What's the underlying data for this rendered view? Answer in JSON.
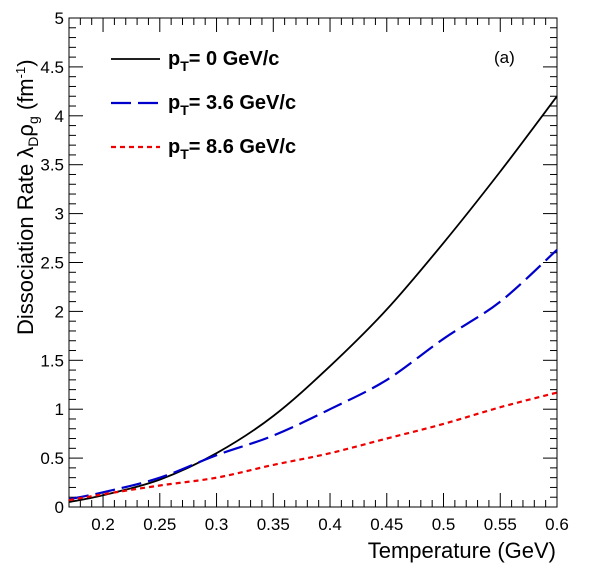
{
  "chart_data": {
    "type": "line",
    "panel_label": "(a)",
    "xlabel": "Temperature (GeV)",
    "ylabel": {
      "prefix": "Dissociation Rate ",
      "symbol1": "λ",
      "sub1": "D",
      "symbol2": "ρ",
      "sub2": "g",
      "unit_open": " (fm",
      "unit_sup": "-1",
      "unit_close": ")"
    },
    "xlim": [
      0.17,
      0.6
    ],
    "ylim": [
      0,
      5
    ],
    "xticks": [
      0.2,
      0.25,
      0.3,
      0.35,
      0.4,
      0.45,
      0.5,
      0.55,
      0.6
    ],
    "xtick_labels": [
      "0.2",
      "0.25",
      "0.3",
      "0.35",
      "0.4",
      "0.45",
      "0.5",
      "0.55",
      "0.6"
    ],
    "yticks": [
      0,
      0.5,
      1,
      1.5,
      2,
      2.5,
      3,
      3.5,
      4,
      4.5,
      5
    ],
    "ytick_labels": [
      "0",
      "0.5",
      "1",
      "1.5",
      "2",
      "2.5",
      "3",
      "3.5",
      "4",
      "4.5",
      "5"
    ],
    "grid": false,
    "legend_position": "top-left",
    "series": [
      {
        "name": "= 0 GeV/c",
        "label_main": "p",
        "label_sub": "T",
        "label_rest": "= 0 GeV/c",
        "color": "#000000",
        "style": "solid",
        "x": [
          0.17,
          0.2,
          0.25,
          0.3,
          0.35,
          0.4,
          0.45,
          0.5,
          0.55,
          0.6
        ],
        "y": [
          0.05,
          0.12,
          0.28,
          0.55,
          0.93,
          1.44,
          2.02,
          2.7,
          3.43,
          4.2
        ]
      },
      {
        "name": "= 3.6 GeV/c",
        "label_main": "p",
        "label_sub": "T",
        "label_rest": "= 3.6 GeV/c",
        "color": "#0000cc",
        "style": "dashed",
        "x": [
          0.17,
          0.2,
          0.25,
          0.3,
          0.35,
          0.4,
          0.45,
          0.5,
          0.55,
          0.6
        ],
        "y": [
          0.08,
          0.15,
          0.3,
          0.53,
          0.73,
          1.0,
          1.3,
          1.72,
          2.1,
          2.63
        ]
      },
      {
        "name": "= 8.6 GeV/c",
        "label_main": "p",
        "label_sub": "T",
        "label_rest": "= 8.6 GeV/c",
        "color": "#ee0000",
        "style": "dotted",
        "x": [
          0.17,
          0.2,
          0.25,
          0.3,
          0.35,
          0.4,
          0.45,
          0.5,
          0.55,
          0.6
        ],
        "y": [
          0.07,
          0.13,
          0.22,
          0.3,
          0.43,
          0.55,
          0.7,
          0.85,
          1.02,
          1.17
        ]
      }
    ]
  }
}
